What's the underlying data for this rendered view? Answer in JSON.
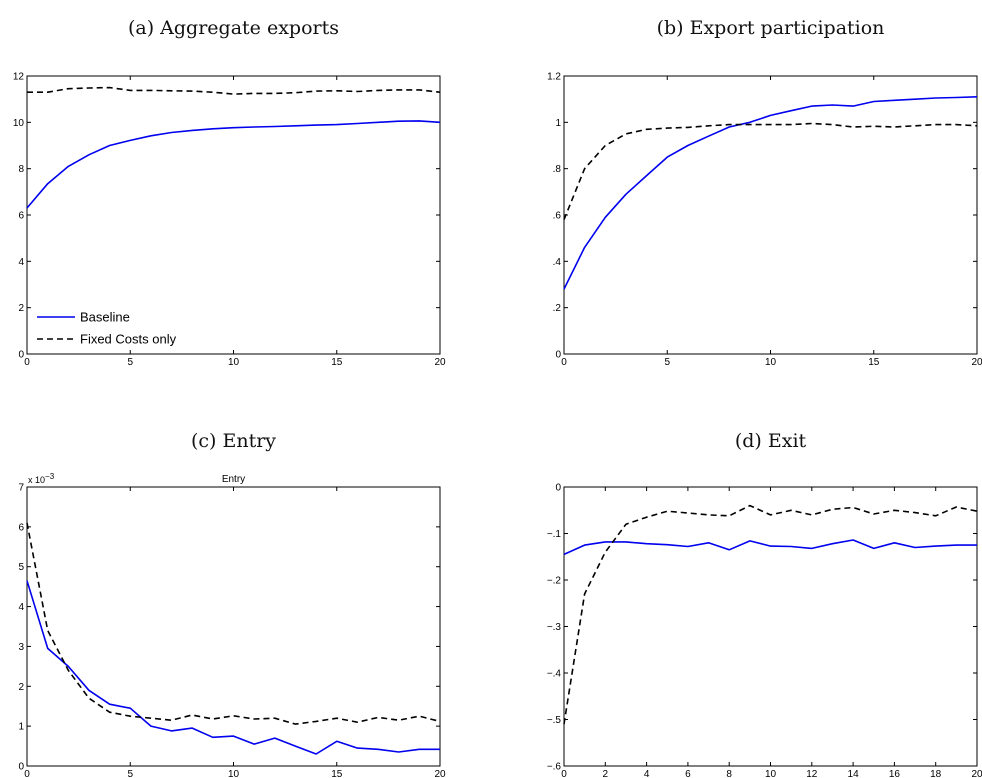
{
  "colors": {
    "baseline": "#0000ee",
    "fixed": "#000000"
  },
  "chart_data": [
    {
      "type": "line",
      "caption": "(a) Aggregate exports",
      "title": "",
      "xlim": [
        0,
        20
      ],
      "ylim": [
        0,
        12
      ],
      "xticks": [
        0,
        5,
        10,
        15,
        20
      ],
      "yticks": [
        0,
        2,
        4,
        6,
        8,
        10,
        12
      ],
      "ytick_labels": [
        "0",
        "2",
        "4",
        "6",
        "8",
        "10",
        "12"
      ],
      "legend": {
        "position": "bottom-left",
        "entries": [
          "Baseline",
          "Fixed Costs only"
        ]
      },
      "series": [
        {
          "name": "Baseline",
          "style": "solid",
          "x": [
            0,
            1,
            2,
            3,
            4,
            5,
            6,
            7,
            8,
            9,
            10,
            11,
            12,
            13,
            14,
            15,
            16,
            17,
            18,
            19,
            20
          ],
          "y": [
            6.3,
            7.35,
            8.1,
            8.6,
            9.0,
            9.22,
            9.42,
            9.56,
            9.65,
            9.72,
            9.77,
            9.8,
            9.82,
            9.85,
            9.88,
            9.9,
            9.95,
            10.0,
            10.05,
            10.06,
            10.0
          ]
        },
        {
          "name": "Fixed Costs only",
          "style": "dashed",
          "x": [
            0,
            1,
            2,
            3,
            4,
            5,
            6,
            7,
            8,
            9,
            10,
            11,
            12,
            13,
            14,
            15,
            16,
            17,
            18,
            19,
            20
          ],
          "y": [
            11.3,
            11.3,
            11.45,
            11.48,
            11.5,
            11.38,
            11.38,
            11.36,
            11.35,
            11.3,
            11.22,
            11.25,
            11.25,
            11.28,
            11.35,
            11.36,
            11.33,
            11.38,
            11.4,
            11.4,
            11.3
          ]
        }
      ]
    },
    {
      "type": "line",
      "caption": "(b) Export participation",
      "title": "",
      "xlim": [
        0,
        20
      ],
      "ylim": [
        0,
        1.2
      ],
      "xticks": [
        0,
        5,
        10,
        15,
        20
      ],
      "yticks": [
        0,
        0.2,
        0.4,
        0.6,
        0.8,
        1.0,
        1.2
      ],
      "ytick_labels": [
        "0",
        ".2",
        ".4",
        ".6",
        ".8",
        "1",
        "1.2"
      ],
      "series": [
        {
          "name": "Baseline",
          "style": "solid",
          "x": [
            0,
            1,
            2,
            3,
            4,
            5,
            6,
            7,
            8,
            9,
            10,
            11,
            12,
            13,
            14,
            15,
            16,
            17,
            18,
            19,
            20
          ],
          "y": [
            0.28,
            0.46,
            0.59,
            0.69,
            0.77,
            0.85,
            0.9,
            0.94,
            0.98,
            1.0,
            1.03,
            1.05,
            1.07,
            1.075,
            1.07,
            1.09,
            1.095,
            1.1,
            1.105,
            1.107,
            1.11
          ]
        },
        {
          "name": "Fixed Costs only",
          "style": "dashed",
          "x": [
            0,
            1,
            2,
            3,
            4,
            5,
            6,
            7,
            8,
            9,
            10,
            11,
            12,
            13,
            14,
            15,
            16,
            17,
            18,
            19,
            20
          ],
          "y": [
            0.58,
            0.8,
            0.9,
            0.95,
            0.97,
            0.975,
            0.978,
            0.985,
            0.99,
            0.99,
            0.99,
            0.99,
            0.995,
            0.99,
            0.98,
            0.983,
            0.98,
            0.985,
            0.99,
            0.99,
            0.985
          ]
        }
      ]
    },
    {
      "type": "line",
      "caption": "(c) Entry",
      "title": "Entry",
      "y_exponent_label": "x 10",
      "y_exponent_power": "−3",
      "xlim": [
        0,
        20
      ],
      "ylim": [
        0,
        7
      ],
      "xticks": [
        0,
        5,
        10,
        15,
        20
      ],
      "yticks": [
        0,
        1,
        2,
        3,
        4,
        5,
        6,
        7
      ],
      "ytick_labels": [
        "0",
        "1",
        "2",
        "3",
        "4",
        "5",
        "6",
        "7"
      ],
      "series": [
        {
          "name": "Baseline",
          "style": "solid",
          "x": [
            0,
            1,
            2,
            3,
            4,
            5,
            6,
            7,
            8,
            9,
            10,
            11,
            12,
            13,
            14,
            15,
            16,
            17,
            18,
            19,
            20
          ],
          "y": [
            4.65,
            2.95,
            2.5,
            1.9,
            1.55,
            1.45,
            1.0,
            0.88,
            0.95,
            0.72,
            0.75,
            0.55,
            0.7,
            0.5,
            0.3,
            0.62,
            0.45,
            0.42,
            0.35,
            0.42,
            0.42
          ]
        },
        {
          "name": "Fixed Costs only",
          "style": "dashed",
          "x": [
            0,
            1,
            2,
            3,
            4,
            5,
            6,
            7,
            8,
            9,
            10,
            11,
            12,
            13,
            14,
            15,
            16,
            17,
            18,
            19,
            20
          ],
          "y": [
            6.1,
            3.4,
            2.4,
            1.7,
            1.35,
            1.25,
            1.2,
            1.15,
            1.28,
            1.18,
            1.26,
            1.18,
            1.2,
            1.05,
            1.12,
            1.2,
            1.1,
            1.22,
            1.15,
            1.25,
            1.12
          ]
        }
      ]
    },
    {
      "type": "line",
      "caption": "(d) Exit",
      "title": "",
      "xlim": [
        0,
        20
      ],
      "ylim": [
        -0.6,
        0
      ],
      "xticks": [
        0,
        2,
        4,
        6,
        8,
        10,
        12,
        14,
        16,
        18,
        20
      ],
      "yticks": [
        -0.6,
        -0.5,
        -0.4,
        -0.3,
        -0.2,
        -0.1,
        0
      ],
      "ytick_labels": [
        "−.6",
        "−.5",
        "−.4",
        "−.3",
        "−.2",
        "−.1",
        "0"
      ],
      "series": [
        {
          "name": "Baseline",
          "style": "solid",
          "x": [
            0,
            1,
            2,
            3,
            4,
            5,
            6,
            7,
            8,
            9,
            10,
            11,
            12,
            13,
            14,
            15,
            16,
            17,
            18,
            19,
            20
          ],
          "y": [
            -0.145,
            -0.125,
            -0.118,
            -0.118,
            -0.122,
            -0.124,
            -0.128,
            -0.12,
            -0.135,
            -0.116,
            -0.127,
            -0.128,
            -0.132,
            -0.122,
            -0.114,
            -0.132,
            -0.12,
            -0.13,
            -0.127,
            -0.125,
            -0.125
          ]
        },
        {
          "name": "Fixed Costs only",
          "style": "dashed",
          "x": [
            0,
            1,
            2,
            3,
            4,
            5,
            6,
            7,
            8,
            9,
            10,
            11,
            12,
            13,
            14,
            15,
            16,
            17,
            18,
            19,
            20
          ],
          "y": [
            -0.51,
            -0.23,
            -0.14,
            -0.08,
            -0.065,
            -0.052,
            -0.056,
            -0.06,
            -0.062,
            -0.04,
            -0.06,
            -0.05,
            -0.06,
            -0.048,
            -0.044,
            -0.058,
            -0.05,
            -0.055,
            -0.062,
            -0.043,
            -0.052
          ]
        }
      ]
    }
  ]
}
